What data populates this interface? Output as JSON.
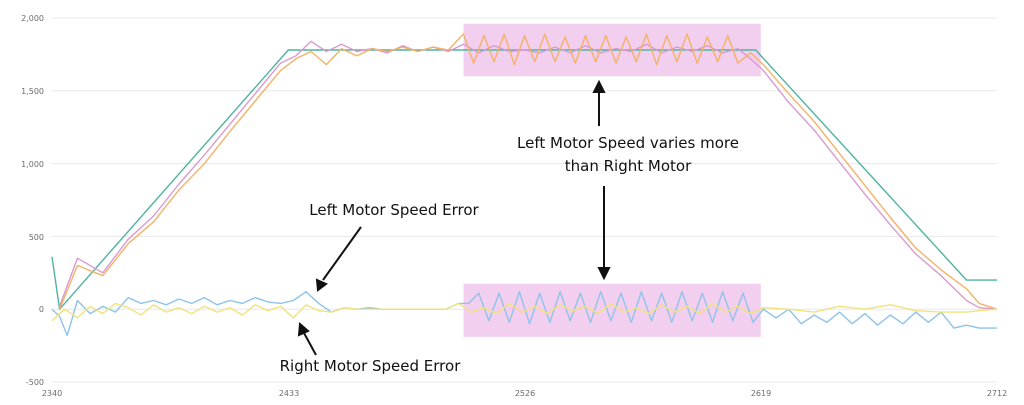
{
  "chart_data": {
    "type": "line",
    "title": "",
    "xlabel": "",
    "ylabel": "",
    "xlim": [
      2340,
      2712
    ],
    "ylim": [
      -500,
      2000
    ],
    "x_ticks": [
      "2340",
      "2433",
      "2526",
      "2619",
      "2712"
    ],
    "y_ticks": [
      "2,000",
      "1,500",
      "1,000",
      "500",
      "0",
      "-500"
    ],
    "grid": "horizontal",
    "colors": {
      "target": "#4fb3a0",
      "left_speed": "#f4b266",
      "right_speed": "#d99bd0",
      "left_error": "#8ec3ea",
      "right_error": "#f2e27a",
      "highlight": "#f0c6ec"
    },
    "series": [
      {
        "key": "target",
        "x": [
          2340,
          2343,
          2433,
          2617,
          2700,
          2712
        ],
        "y": [
          360,
          0,
          1780,
          1780,
          200,
          200
        ]
      },
      {
        "key": "right_speed",
        "x": [
          2343,
          2350,
          2360,
          2370,
          2380,
          2390,
          2400,
          2410,
          2420,
          2430,
          2436,
          2442,
          2448,
          2454,
          2460,
          2466,
          2472,
          2478,
          2484,
          2490,
          2496,
          2502,
          2508,
          2514,
          2520,
          2526,
          2532,
          2538,
          2544,
          2550,
          2556,
          2562,
          2568,
          2574,
          2580,
          2586,
          2592,
          2598,
          2604,
          2610,
          2615,
          2620,
          2630,
          2640,
          2650,
          2660,
          2670,
          2680,
          2690,
          2700,
          2705,
          2712
        ],
        "y": [
          20,
          350,
          250,
          480,
          640,
          860,
          1060,
          1270,
          1480,
          1690,
          1740,
          1840,
          1770,
          1820,
          1770,
          1790,
          1760,
          1810,
          1770,
          1800,
          1770,
          1820,
          1760,
          1810,
          1770,
          1780,
          1760,
          1800,
          1760,
          1810,
          1760,
          1790,
          1770,
          1820,
          1760,
          1800,
          1770,
          1810,
          1760,
          1790,
          1720,
          1640,
          1420,
          1230,
          1010,
          790,
          580,
          380,
          230,
          60,
          10,
          0
        ]
      },
      {
        "key": "left_speed",
        "x": [
          2343,
          2350,
          2360,
          2370,
          2380,
          2390,
          2400,
          2410,
          2420,
          2430,
          2436,
          2442,
          2448,
          2454,
          2460,
          2466,
          2472,
          2478,
          2484,
          2490,
          2496,
          2502,
          2506,
          2510,
          2514,
          2518,
          2522,
          2526,
          2530,
          2534,
          2538,
          2542,
          2546,
          2550,
          2554,
          2558,
          2562,
          2566,
          2570,
          2574,
          2578,
          2582,
          2586,
          2590,
          2594,
          2598,
          2602,
          2606,
          2610,
          2615,
          2620,
          2630,
          2640,
          2650,
          2660,
          2670,
          2680,
          2690,
          2700,
          2705,
          2712
        ],
        "y": [
          0,
          300,
          230,
          450,
          600,
          820,
          1000,
          1220,
          1430,
          1640,
          1720,
          1770,
          1680,
          1790,
          1740,
          1790,
          1770,
          1800,
          1770,
          1800,
          1780,
          1890,
          1690,
          1880,
          1700,
          1890,
          1680,
          1880,
          1700,
          1890,
          1700,
          1870,
          1690,
          1880,
          1700,
          1880,
          1690,
          1870,
          1700,
          1890,
          1680,
          1880,
          1700,
          1890,
          1690,
          1870,
          1700,
          1880,
          1690,
          1760,
          1680,
          1480,
          1290,
          1070,
          850,
          630,
          420,
          270,
          140,
          40,
          0
        ]
      },
      {
        "key": "left_error",
        "x": [
          2340,
          2343,
          2346,
          2350,
          2355,
          2360,
          2365,
          2370,
          2375,
          2380,
          2385,
          2390,
          2395,
          2400,
          2405,
          2410,
          2415,
          2420,
          2425,
          2430,
          2435,
          2440,
          2445,
          2450,
          2455,
          2460,
          2465,
          2470,
          2475,
          2480,
          2485,
          2490,
          2495,
          2500,
          2504,
          2508,
          2512,
          2516,
          2520,
          2524,
          2528,
          2532,
          2536,
          2540,
          2544,
          2548,
          2552,
          2556,
          2560,
          2564,
          2568,
          2572,
          2576,
          2580,
          2584,
          2588,
          2592,
          2596,
          2600,
          2604,
          2608,
          2612,
          2616,
          2620,
          2625,
          2630,
          2635,
          2640,
          2645,
          2650,
          2655,
          2660,
          2665,
          2670,
          2675,
          2680,
          2685,
          2690,
          2695,
          2700,
          2705,
          2712
        ],
        "y": [
          0,
          -50,
          -180,
          60,
          -30,
          20,
          -20,
          80,
          40,
          60,
          30,
          70,
          40,
          80,
          30,
          60,
          40,
          80,
          50,
          40,
          60,
          120,
          40,
          -20,
          10,
          0,
          10,
          0,
          0,
          0,
          0,
          0,
          0,
          40,
          40,
          110,
          -80,
          110,
          -90,
          120,
          -100,
          110,
          -90,
          120,
          -80,
          110,
          -90,
          120,
          -80,
          110,
          -90,
          120,
          -80,
          110,
          -90,
          120,
          -80,
          110,
          -90,
          120,
          -80,
          110,
          -90,
          0,
          -60,
          0,
          -100,
          -40,
          -90,
          -20,
          -100,
          -30,
          -110,
          -40,
          -100,
          -20,
          -90,
          -20,
          -130,
          -110,
          -130,
          -130
        ]
      },
      {
        "key": "right_error",
        "x": [
          2340,
          2345,
          2350,
          2355,
          2360,
          2365,
          2370,
          2375,
          2380,
          2385,
          2390,
          2395,
          2400,
          2405,
          2410,
          2415,
          2420,
          2425,
          2430,
          2435,
          2440,
          2445,
          2450,
          2455,
          2460,
          2465,
          2470,
          2475,
          2480,
          2485,
          2490,
          2495,
          2500,
          2505,
          2510,
          2515,
          2520,
          2525,
          2530,
          2535,
          2540,
          2545,
          2550,
          2555,
          2560,
          2565,
          2570,
          2575,
          2580,
          2585,
          2590,
          2595,
          2600,
          2605,
          2610,
          2615,
          2620,
          2630,
          2640,
          2650,
          2660,
          2670,
          2680,
          2690,
          2700,
          2705,
          2712
        ],
        "y": [
          -80,
          0,
          -60,
          20,
          -30,
          40,
          10,
          -40,
          30,
          -20,
          10,
          -30,
          20,
          -20,
          10,
          -40,
          30,
          -10,
          20,
          -60,
          30,
          -10,
          -20,
          10,
          0,
          0,
          0,
          0,
          0,
          0,
          0,
          0,
          40,
          -20,
          10,
          -30,
          40,
          -20,
          20,
          -30,
          30,
          -10,
          20,
          -30,
          40,
          -20,
          10,
          -30,
          30,
          -20,
          20,
          -30,
          40,
          -20,
          20,
          -30,
          10,
          0,
          -20,
          20,
          0,
          30,
          -10,
          -20,
          -20,
          -10,
          0
        ]
      }
    ],
    "highlights": [
      {
        "x0": 2502,
        "x1": 2619,
        "y0": 1600,
        "y1": 1960
      },
      {
        "x0": 2502,
        "x1": 2619,
        "y0": -190,
        "y1": 175
      }
    ],
    "annotations": {
      "top_note_line1": "Left Motor Speed varies more",
      "top_note_line2": "than Right Motor",
      "left_error_note": "Left Motor Speed Error",
      "right_error_note": "Right Motor Speed Error"
    }
  }
}
